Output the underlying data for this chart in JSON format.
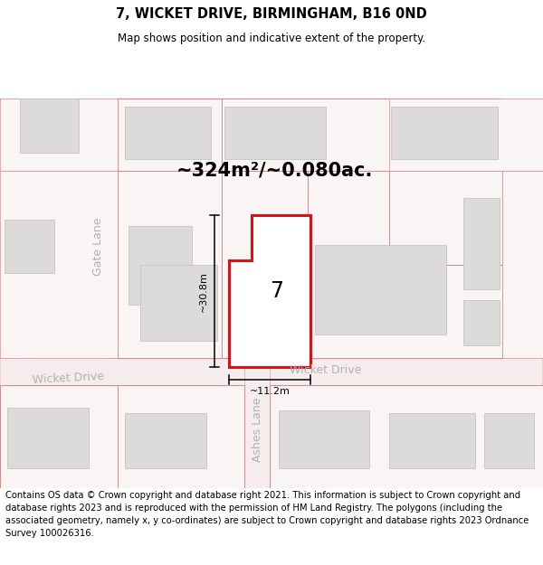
{
  "title": "7, WICKET DRIVE, BIRMINGHAM, B16 0ND",
  "subtitle": "Map shows position and indicative extent of the property.",
  "footer_text": "Contains OS data © Crown copyright and database right 2021. This information is subject to Crown copyright and database rights 2023 and is reproduced with the permission of HM Land Registry. The polygons (including the associated geometry, namely x, y co-ordinates) are subject to Crown copyright and database rights 2023 Ordnance Survey 100026316.",
  "area_label": "~324m²/~0.080ac.",
  "number_label": "7",
  "dim_height_label": "~30.8m",
  "dim_width_label": "~11.2m",
  "street_label_wd_left": "Wicket Drive",
  "street_label_wd_right": "Wicket Drive",
  "gate_lane_label": "Gate Lane",
  "ashes_lane_label": "Ashes Lane",
  "map_bg": "#f2eded",
  "road_fill": "#f5eded",
  "road_stroke": "#e0a0a0",
  "plot_stroke": "#e08888",
  "plot_fill": "#faf5f5",
  "building_fill": "#dddada",
  "building_stroke": "#c8c4c4",
  "property_fill": "#ffffff",
  "property_stroke": "#dd1111",
  "title_fontsize": 10.5,
  "subtitle_fontsize": 8.5,
  "footer_fontsize": 7.2,
  "area_fontsize": 15,
  "number_fontsize": 17,
  "dim_fontsize": 8,
  "street_fontsize": 9,
  "lane_fontsize": 9
}
